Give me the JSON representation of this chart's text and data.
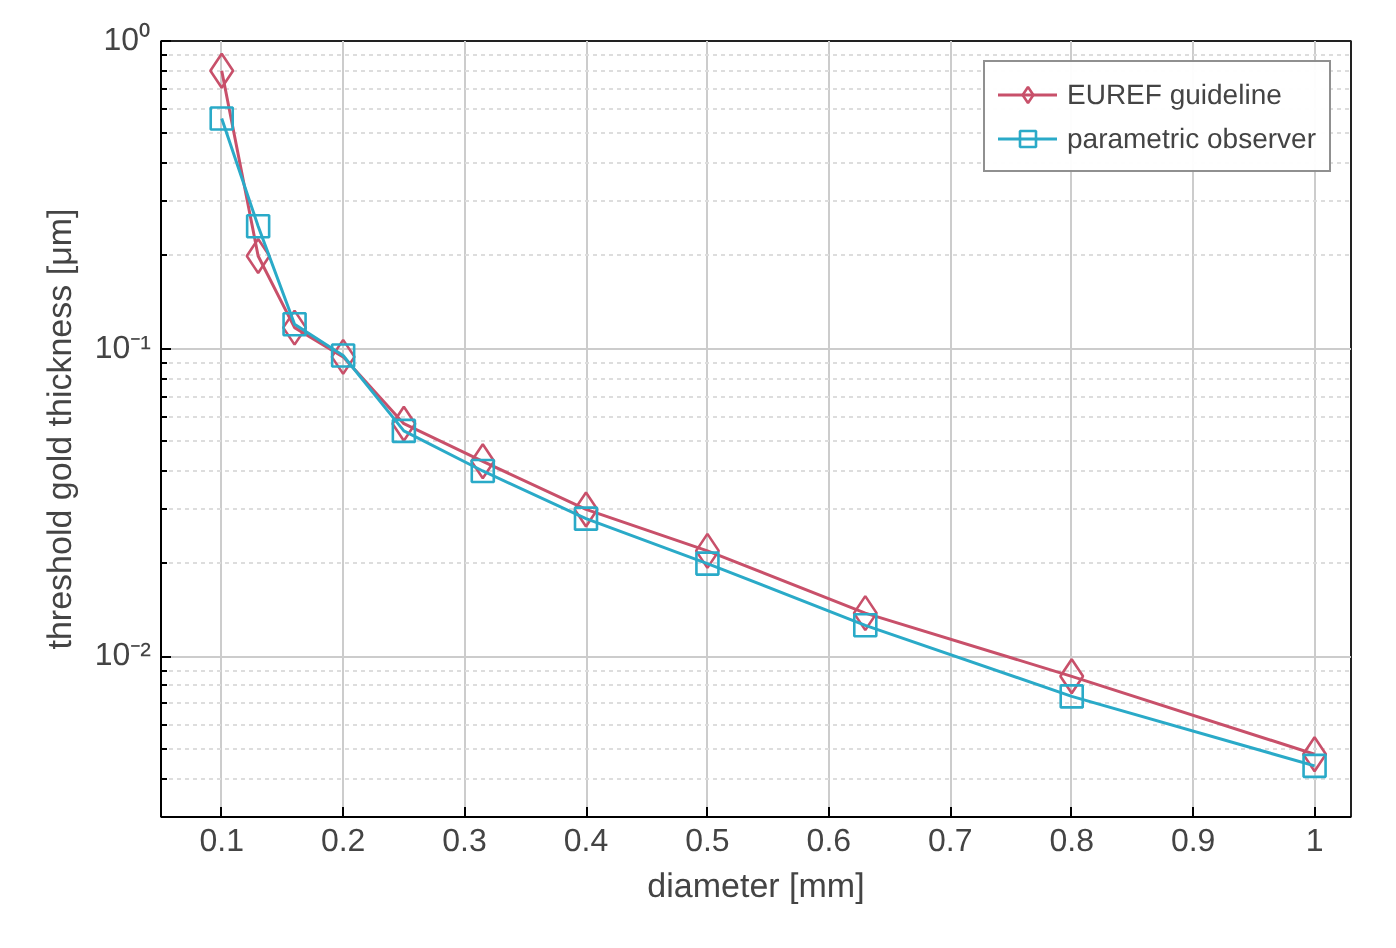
{
  "chart_data": {
    "type": "line",
    "xlabel": "diameter [mm]",
    "ylabel": "threshold gold thickness [μm]",
    "x": [
      0.1,
      0.13,
      0.16,
      0.2,
      0.25,
      0.315,
      0.4,
      0.5,
      0.63,
      0.8,
      1.0
    ],
    "series": [
      {
        "name": "EUREF guideline",
        "color": "#c8506a",
        "marker": "diamond",
        "values": [
          0.8,
          0.2,
          0.117,
          0.094,
          0.057,
          0.043,
          0.03,
          0.022,
          0.0138,
          0.0086,
          0.0048
        ]
      },
      {
        "name": "parametric observer",
        "color": "#2aaac8",
        "marker": "square",
        "values": [
          0.56,
          0.25,
          0.12,
          0.095,
          0.054,
          0.04,
          0.028,
          0.02,
          0.0126,
          0.0074,
          0.0044
        ]
      }
    ],
    "log": "y",
    "xlim": [
      0.05,
      1.03
    ],
    "ylim": [
      0.003,
      1
    ],
    "xticks": [
      0.1,
      0.2,
      0.3,
      0.4,
      0.5,
      0.6,
      0.7,
      0.8,
      0.9,
      1
    ],
    "yticks": [
      {
        "value": 0.01,
        "label": "10⁻²"
      },
      {
        "value": 0.1,
        "label": "10⁻¹"
      },
      {
        "value": 1,
        "label": "10⁰"
      }
    ],
    "grid": true,
    "legend": "top right",
    "line_style": "solid"
  }
}
